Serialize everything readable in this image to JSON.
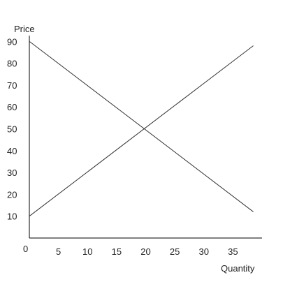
{
  "chart_data": {
    "type": "line",
    "title": "",
    "ylabel": "Price",
    "xlabel": "Quantity",
    "origin_label": "0",
    "xlim": [
      0,
      40
    ],
    "ylim": [
      0,
      92
    ],
    "grid": false,
    "legend": "none",
    "xticks": [
      5,
      10,
      15,
      20,
      25,
      30,
      35
    ],
    "yticks": [
      10,
      20,
      30,
      40,
      50,
      60,
      70,
      80,
      90
    ],
    "series": [
      {
        "x": [
          0,
          38.5
        ],
        "y": [
          90,
          12
        ]
      },
      {
        "x": [
          0,
          38.5
        ],
        "y": [
          10,
          88
        ]
      }
    ],
    "colors": {
      "line": "#333333",
      "axis": "#000000"
    }
  }
}
